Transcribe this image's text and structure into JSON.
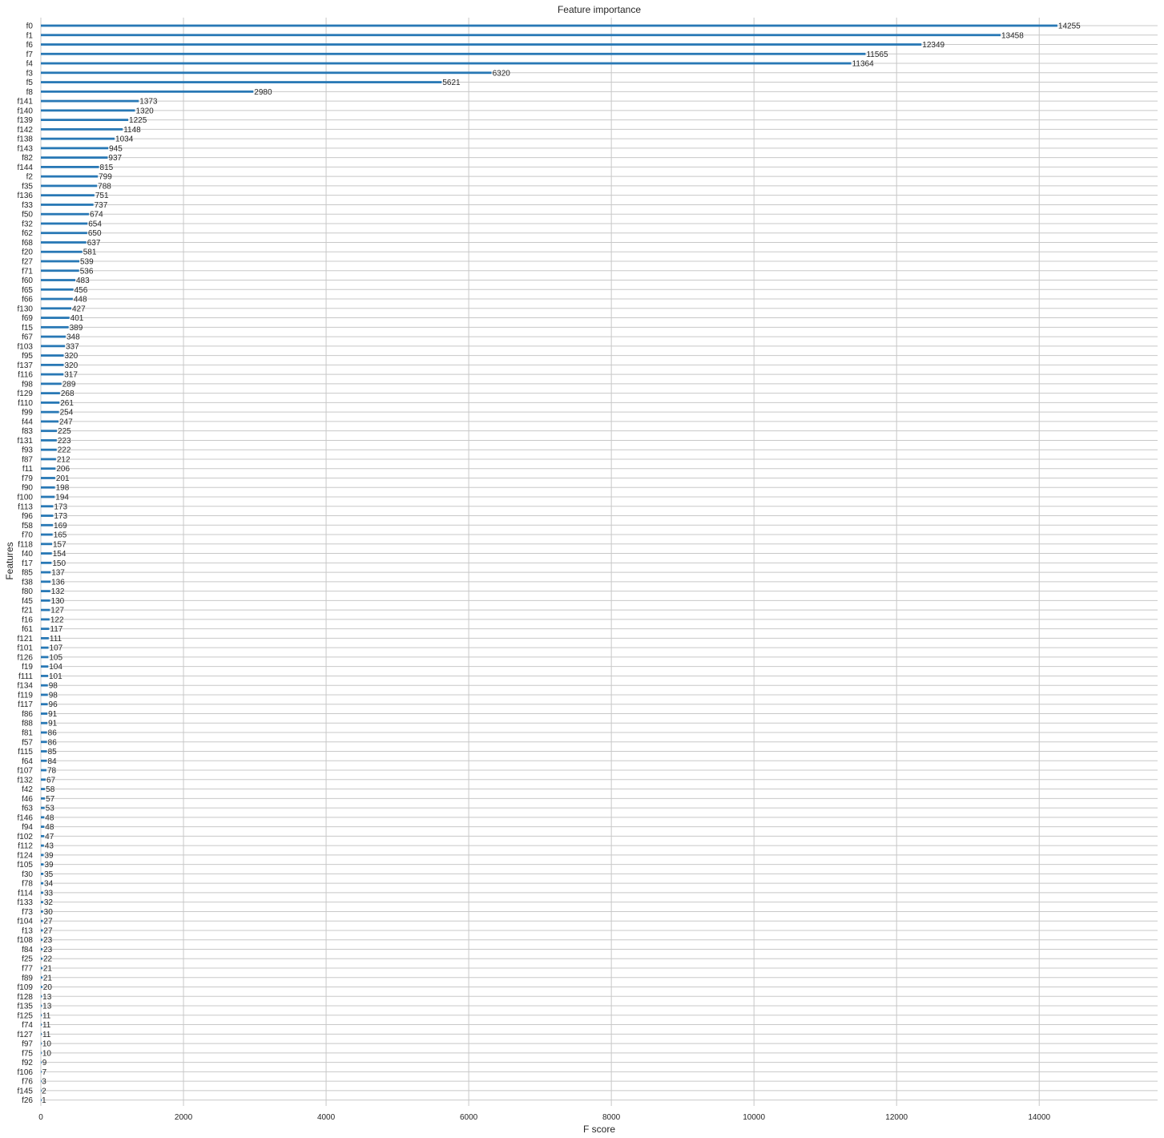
{
  "chart_data": {
    "type": "bar",
    "orientation": "horizontal",
    "title": "Feature importance",
    "xlabel": "F score",
    "ylabel": "Features",
    "xlim": [
      0,
      15660
    ],
    "xticks": [
      0,
      2000,
      4000,
      6000,
      8000,
      10000,
      12000,
      14000
    ],
    "grid": true,
    "bar_color": "#2878b5",
    "grid_color": "#c8c8c8",
    "categories": [
      "f0",
      "f1",
      "f6",
      "f7",
      "f4",
      "f3",
      "f5",
      "f8",
      "f141",
      "f140",
      "f139",
      "f142",
      "f138",
      "f143",
      "f82",
      "f144",
      "f2",
      "f35",
      "f136",
      "f33",
      "f50",
      "f32",
      "f62",
      "f68",
      "f20",
      "f27",
      "f71",
      "f60",
      "f65",
      "f66",
      "f130",
      "f69",
      "f15",
      "f67",
      "f103",
      "f95",
      "f137",
      "f116",
      "f98",
      "f129",
      "f110",
      "f99",
      "f44",
      "f83",
      "f131",
      "f93",
      "f87",
      "f11",
      "f79",
      "f90",
      "f100",
      "f113",
      "f96",
      "f58",
      "f70",
      "f118",
      "f40",
      "f17",
      "f85",
      "f38",
      "f80",
      "f45",
      "f21",
      "f16",
      "f61",
      "f121",
      "f101",
      "f126",
      "f19",
      "f111",
      "f134",
      "f119",
      "f117",
      "f86",
      "f88",
      "f81",
      "f57",
      "f115",
      "f64",
      "f107",
      "f132",
      "f42",
      "f46",
      "f63",
      "f146",
      "f94",
      "f102",
      "f112",
      "f124",
      "f105",
      "f30",
      "f78",
      "f114",
      "f133",
      "f73",
      "f104",
      "f13",
      "f108",
      "f84",
      "f25",
      "f77",
      "f89",
      "f109",
      "f128",
      "f135",
      "f125",
      "f74",
      "f127",
      "f97",
      "f75",
      "f92",
      "f106",
      "f76",
      "f145",
      "f26"
    ],
    "values": [
      14255,
      13458,
      12349,
      11565,
      11364,
      6320,
      5621,
      2980,
      1373,
      1320,
      1225,
      1148,
      1034,
      945,
      937,
      815,
      799,
      788,
      751,
      737,
      674,
      654,
      650,
      637,
      581,
      539,
      536,
      483,
      456,
      448,
      427,
      401,
      389,
      348,
      337,
      320,
      320,
      317,
      289,
      268,
      261,
      254,
      247,
      225,
      223,
      222,
      212,
      206,
      201,
      198,
      194,
      173,
      173,
      169,
      165,
      157,
      154,
      150,
      137,
      136,
      132,
      130,
      127,
      122,
      117,
      111,
      107,
      105,
      104,
      101,
      98,
      98,
      96,
      91,
      91,
      86,
      86,
      85,
      84,
      78,
      67,
      58,
      57,
      53,
      48,
      48,
      47,
      43,
      39,
      39,
      35,
      34,
      33,
      32,
      30,
      27,
      27,
      23,
      23,
      22,
      21,
      21,
      20,
      13,
      13,
      11,
      11,
      11,
      10,
      10,
      9,
      7,
      3,
      2,
      1
    ]
  }
}
